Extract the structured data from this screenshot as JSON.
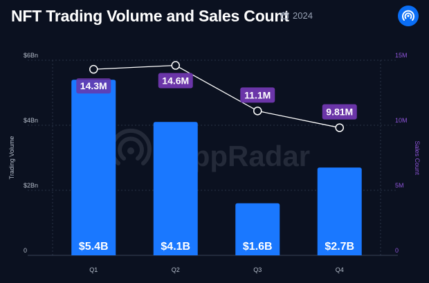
{
  "header": {
    "title": "NFT Trading Volume and Sales Count",
    "year": "2024"
  },
  "icons": {
    "calendar": "calendar-icon",
    "logo": "dappradar-logo-icon",
    "watermark": "DappRadar"
  },
  "colors": {
    "background": "#0b1120",
    "bar": "#1a78ff",
    "line": "#ffffff",
    "label_box": "#6b35a8",
    "left_axis": "#b7bfcc",
    "right_axis": "#8f55d9"
  },
  "chart_data": {
    "type": "bar",
    "categories": [
      "Q1",
      "Q2",
      "Q3",
      "Q4"
    ],
    "series": [
      {
        "values": [
          5.4,
          4.1,
          1.6,
          2.7
        ],
        "labels": [
          "$5.4B",
          "$4.1B",
          "$1.6B",
          "$2.7B"
        ]
      },
      {
        "values": [
          14.3,
          14.6,
          11.1,
          9.81
        ],
        "labels": [
          "14.3M",
          "14.6M",
          "11.1M",
          "9.81M"
        ],
        "type": "line"
      }
    ],
    "ylabel": "Trading Volume",
    "y2label": "Sales Count",
    "ylim": [
      0,
      6
    ],
    "y2lim": [
      0,
      15
    ],
    "yticks": [
      {
        "value": 0,
        "label": "0"
      },
      {
        "value": 2,
        "label": "$2Bn"
      },
      {
        "value": 4,
        "label": "$4Bn"
      },
      {
        "value": 6,
        "label": "$6Bn"
      }
    ],
    "y2ticks": [
      {
        "value": 0,
        "label": "0"
      },
      {
        "value": 5,
        "label": "5M"
      },
      {
        "value": 10,
        "label": "10M"
      },
      {
        "value": 15,
        "label": "15M"
      }
    ],
    "grid": "horizontal dashed"
  }
}
